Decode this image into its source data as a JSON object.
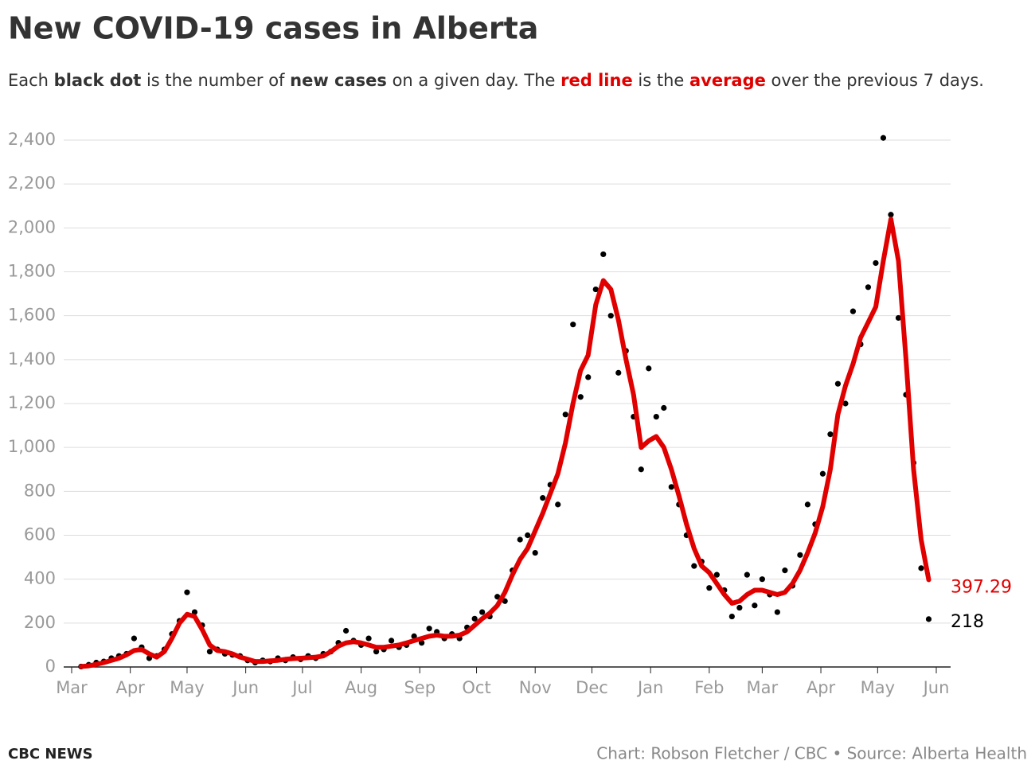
{
  "chart_data": {
    "type": "scatter-line",
    "title": "New COVID-19 cases in Alberta",
    "subtitle": [
      "Each ",
      "black dot",
      " is the number of ",
      " on a given day. The ",
      "red line",
      " is the ",
      " over the previous 7 days."
    ],
    "footer_left": "CBC NEWS",
    "footer_right": "Chart: Robson Fletcher / CBC • Source: Alberta Health",
    "xlim": [
      0,
      457
    ],
    "xticks": [
      {
        "value": 0,
        "label": "Mar"
      },
      {
        "value": 31,
        "label": "Apr"
      },
      {
        "value": 61,
        "label": "May"
      },
      {
        "value": 92,
        "label": "Jun"
      },
      {
        "value": 122,
        "label": "Jul"
      },
      {
        "value": 153,
        "label": "Aug"
      },
      {
        "value": 184,
        "label": "Sep"
      },
      {
        "value": 214,
        "label": "Oct"
      },
      {
        "value": 245,
        "label": "Nov"
      },
      {
        "value": 275,
        "label": "Dec"
      },
      {
        "value": 306,
        "label": "Jan"
      },
      {
        "value": 337,
        "label": "Feb"
      },
      {
        "value": 365,
        "label": "Mar"
      },
      {
        "value": 396,
        "label": "Apr"
      },
      {
        "value": 426,
        "label": "May"
      },
      {
        "value": 457,
        "label": "Jun"
      }
    ],
    "ylim": [
      0,
      2400
    ],
    "yticks": [
      0,
      200,
      400,
      600,
      800,
      {
        "value": 1000,
        "label": "1,000"
      },
      {
        "value": 1200,
        "label": "1,200"
      },
      {
        "value": 1400,
        "label": "1,400"
      },
      {
        "value": 1600,
        "label": "1,600"
      },
      {
        "value": 1800,
        "label": "1,800"
      },
      {
        "value": 2000,
        "label": "2,000"
      },
      {
        "value": 2200,
        "label": "2,200"
      },
      {
        "value": 2400,
        "label": "2,400"
      }
    ],
    "grid": true,
    "x": [
      5,
      9,
      13,
      17,
      21,
      25,
      29,
      33,
      37,
      41,
      45,
      49,
      53,
      57,
      61,
      65,
      69,
      73,
      77,
      81,
      85,
      89,
      93,
      97,
      101,
      105,
      109,
      113,
      117,
      121,
      125,
      129,
      133,
      137,
      141,
      145,
      149,
      153,
      157,
      161,
      165,
      169,
      173,
      177,
      181,
      185,
      189,
      193,
      197,
      201,
      205,
      209,
      213,
      217,
      221,
      225,
      229,
      233,
      237,
      241,
      245,
      249,
      253,
      257,
      261,
      265,
      269,
      273,
      277,
      281,
      285,
      289,
      293,
      297,
      301,
      305,
      309,
      313,
      317,
      321,
      325,
      329,
      333,
      337,
      341,
      345,
      349,
      353,
      357,
      361,
      365,
      369,
      373,
      377,
      381,
      385,
      389,
      393,
      397,
      401,
      405,
      409,
      413,
      417,
      421,
      425,
      429,
      433,
      437,
      441,
      445,
      449,
      453
    ],
    "series": [
      {
        "name": "new cases",
        "color": "#000000",
        "values": [
          2,
          10,
          20,
          25,
          40,
          50,
          60,
          130,
          90,
          40,
          50,
          80,
          150,
          210,
          340,
          250,
          190,
          70,
          80,
          60,
          55,
          50,
          30,
          20,
          30,
          25,
          40,
          30,
          45,
          35,
          50,
          40,
          60,
          70,
          110,
          165,
          120,
          100,
          130,
          70,
          80,
          120,
          90,
          100,
          140,
          110,
          175,
          160,
          130,
          150,
          130,
          180,
          220,
          250,
          230,
          320,
          300,
          440,
          580,
          600,
          520,
          770,
          830,
          740,
          1150,
          1560,
          1230,
          1320,
          1720,
          1880,
          1600,
          1340,
          1440,
          1140,
          900,
          1360,
          1140,
          1180,
          820,
          740,
          600,
          460,
          480,
          360,
          420,
          350,
          230,
          270,
          420,
          280,
          400,
          330,
          250,
          440,
          370,
          510,
          740,
          650,
          880,
          1060,
          1290,
          1200,
          1620,
          1470,
          1730,
          1840,
          2410,
          2060,
          1590,
          1240,
          930,
          450,
          218
        ]
      },
      {
        "name": "average",
        "color": "#e00000",
        "values": [
          2,
          5,
          12,
          20,
          30,
          40,
          55,
          75,
          80,
          60,
          45,
          70,
          130,
          200,
          240,
          230,
          170,
          100,
          75,
          70,
          60,
          45,
          35,
          25,
          25,
          28,
          30,
          35,
          38,
          40,
          42,
          45,
          50,
          70,
          95,
          110,
          115,
          110,
          100,
          90,
          90,
          95,
          100,
          110,
          120,
          130,
          140,
          145,
          140,
          140,
          145,
          160,
          190,
          220,
          245,
          280,
          340,
          420,
          490,
          540,
          620,
          700,
          790,
          880,
          1020,
          1200,
          1350,
          1420,
          1650,
          1760,
          1720,
          1580,
          1400,
          1240,
          1000,
          1030,
          1050,
          1000,
          900,
          780,
          650,
          540,
          460,
          430,
          380,
          330,
          290,
          300,
          330,
          350,
          350,
          340,
          330,
          340,
          380,
          440,
          520,
          610,
          730,
          900,
          1150,
          1280,
          1380,
          1500,
          1570,
          1640,
          1850,
          2040,
          1850,
          1400,
          900,
          580,
          397.29
        ]
      }
    ]
  }
}
